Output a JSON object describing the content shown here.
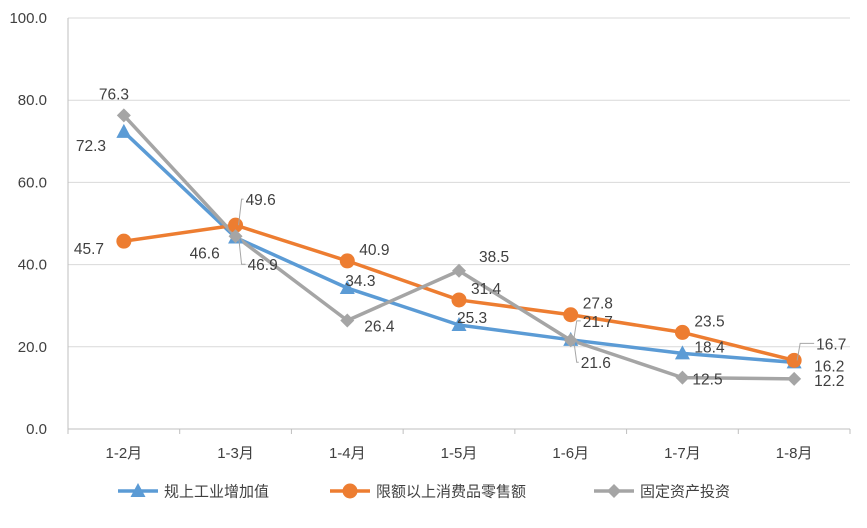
{
  "chart_data": {
    "type": "line",
    "categories": [
      "1-2月",
      "1-3月",
      "1-4月",
      "1-5月",
      "1-6月",
      "1-7月",
      "1-8月"
    ],
    "ylim": [
      0,
      100
    ],
    "yticks": [
      "0.0",
      "20.0",
      "40.0",
      "60.0",
      "80.0",
      "100.0"
    ],
    "grid": true,
    "legend": "bottom",
    "series": [
      {
        "name": "规上工业增加值",
        "color": "#5B9BD5",
        "marker": "triangle",
        "values": [
          72.3,
          46.6,
          34.3,
          25.3,
          21.7,
          18.4,
          16.2
        ],
        "labels": [
          "72.3",
          "46.6",
          "34.3",
          "25.3",
          "21.7",
          "18.4",
          "16.2"
        ]
      },
      {
        "name": "限额以上消费品零售额",
        "color": "#ED7D31",
        "marker": "circle",
        "values": [
          45.7,
          49.6,
          40.9,
          31.4,
          27.8,
          23.5,
          16.7
        ],
        "labels": [
          "45.7",
          "49.6",
          "40.9",
          "31.4",
          "27.8",
          "23.5",
          "16.7"
        ]
      },
      {
        "name": "固定资产投资",
        "color": "#A5A5A5",
        "marker": "diamond",
        "values": [
          76.3,
          46.9,
          26.4,
          38.5,
          21.6,
          12.5,
          12.2
        ],
        "labels": [
          "76.3",
          "46.9",
          "26.4",
          "38.5",
          "21.6",
          "12.5",
          "12.2"
        ]
      }
    ]
  }
}
